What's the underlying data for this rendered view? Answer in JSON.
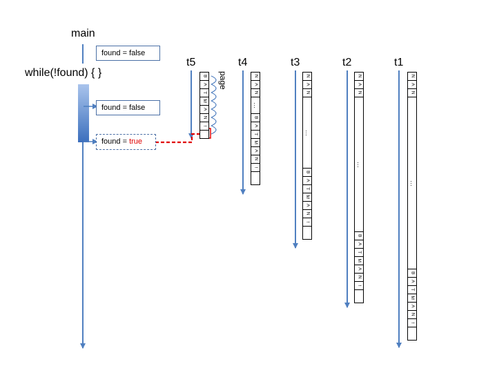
{
  "labels": {
    "main": "main",
    "while": "while(!found) { }",
    "t5": "t5",
    "t4": "t4",
    "t3": "t3",
    "t2": "t2",
    "t1": "t1",
    "page": "page"
  },
  "boxes": {
    "box1": "found = false",
    "box2": "found = false",
    "box3_prefix": "found = ",
    "box3_value": "true"
  },
  "strip_letters": {
    "top": [
      "N",
      "A",
      "N"
    ],
    "ellipsis": "…",
    "batman": [
      "B",
      "A",
      "T",
      "M",
      "A",
      "N",
      "!"
    ]
  },
  "colors": {
    "arrow": "#4f7fc0",
    "highlight": "#e00000",
    "bar_top": "#a9c4ec",
    "bar_bottom": "#3c6fbd"
  }
}
